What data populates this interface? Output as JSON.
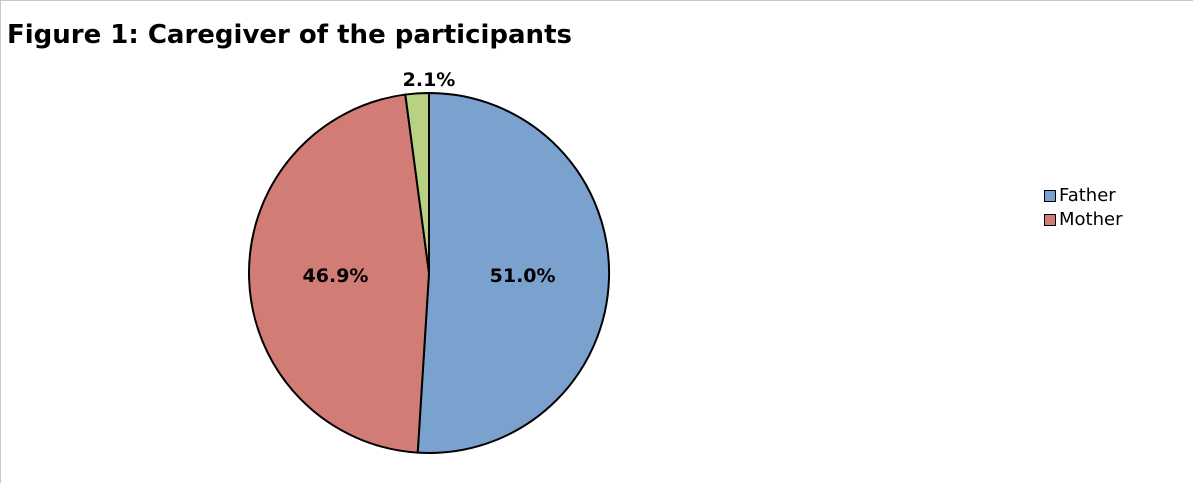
{
  "chart_data": {
    "type": "pie",
    "title": "Figure 1: Caregiver of the participants",
    "categories": [
      "Father",
      "Mother",
      ""
    ],
    "values": [
      51.0,
      46.9,
      2.1
    ],
    "labels": [
      "51.0%",
      "46.9%",
      "2.1%"
    ],
    "colors": [
      "#7ba1cf",
      "#d27c76",
      "#b8d183"
    ],
    "legend": {
      "placement": "right",
      "entries": [
        "Father",
        "Mother"
      ]
    }
  }
}
